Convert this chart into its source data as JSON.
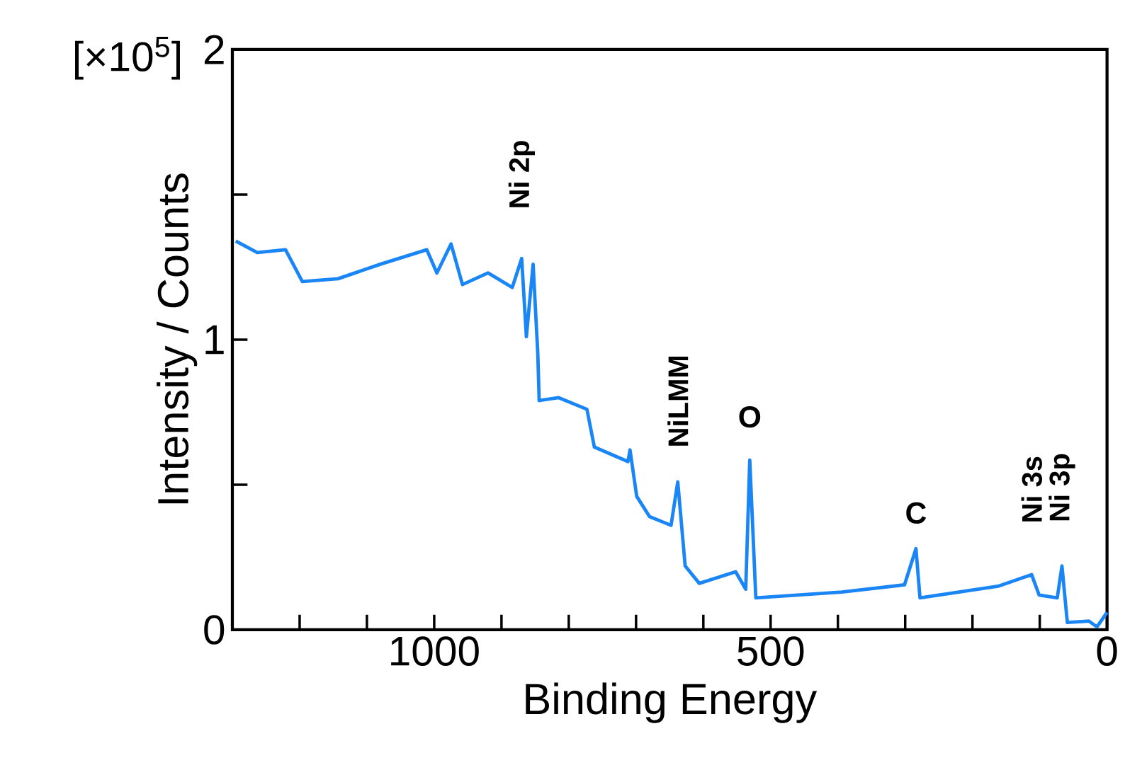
{
  "chart_data": {
    "type": "line",
    "xlabel": "Binding Energy",
    "ylabel": "Intensity / Counts",
    "color": "#1a85f5",
    "x": [
      1295,
      1263,
      1221,
      1196,
      1143,
      1080,
      1011,
      996,
      975,
      958,
      920,
      884,
      870,
      863,
      853,
      846,
      844,
      815,
      773,
      762,
      712,
      709,
      699,
      680,
      648,
      638,
      627,
      606,
      552,
      537,
      531,
      522,
      394,
      301,
      284,
      278,
      162,
      112,
      101,
      74,
      67,
      59,
      27,
      15,
      0
    ],
    "values": [
      1.34,
      1.3,
      1.31,
      1.2,
      1.21,
      1.26,
      1.31,
      1.23,
      1.33,
      1.19,
      1.23,
      1.18,
      1.28,
      1.01,
      1.26,
      0.95,
      0.79,
      0.8,
      0.76,
      0.63,
      0.58,
      0.62,
      0.46,
      0.39,
      0.36,
      0.51,
      0.22,
      0.16,
      0.2,
      0.14,
      0.585,
      0.11,
      0.13,
      0.155,
      0.28,
      0.11,
      0.15,
      0.19,
      0.12,
      0.11,
      0.22,
      0.025,
      0.03,
      0.01,
      0.06
    ],
    "xlim": [
      1300,
      0
    ],
    "ylim": [
      0,
      2
    ],
    "xticks": [
      0,
      {
        "value": 100,
        "label": null
      },
      {
        "value": 200,
        "label": null
      },
      {
        "value": 300,
        "label": null
      },
      {
        "value": 400,
        "label": null
      },
      500,
      {
        "value": 600,
        "label": null
      },
      {
        "value": 700,
        "label": null
      },
      {
        "value": 800,
        "label": null
      },
      {
        "value": 900,
        "label": null
      },
      1000,
      {
        "value": 1100,
        "label": null
      },
      {
        "value": 1200,
        "label": null
      }
    ],
    "yticks": [
      0,
      {
        "value": 0.5,
        "label": null
      },
      1,
      {
        "value": 1.5,
        "label": null
      },
      2
    ],
    "grid": false,
    "marker": "none",
    "line_style": "solid",
    "annotations": [
      {
        "text": "Ni 2p",
        "x": 870,
        "y": 1.28
      },
      {
        "text": "NiLMM",
        "x": 638,
        "y": 0.51
      },
      {
        "text": "O",
        "x": 531,
        "y": 0.585
      },
      {
        "text": "C",
        "x": 284,
        "y": 0.28
      },
      {
        "text": "Ni 3s",
        "x": 112,
        "y": 0.19
      },
      {
        "text": "Ni 3p",
        "x": 67,
        "y": 0.22
      },
      "[×10$^{5}$]"
    ]
  }
}
